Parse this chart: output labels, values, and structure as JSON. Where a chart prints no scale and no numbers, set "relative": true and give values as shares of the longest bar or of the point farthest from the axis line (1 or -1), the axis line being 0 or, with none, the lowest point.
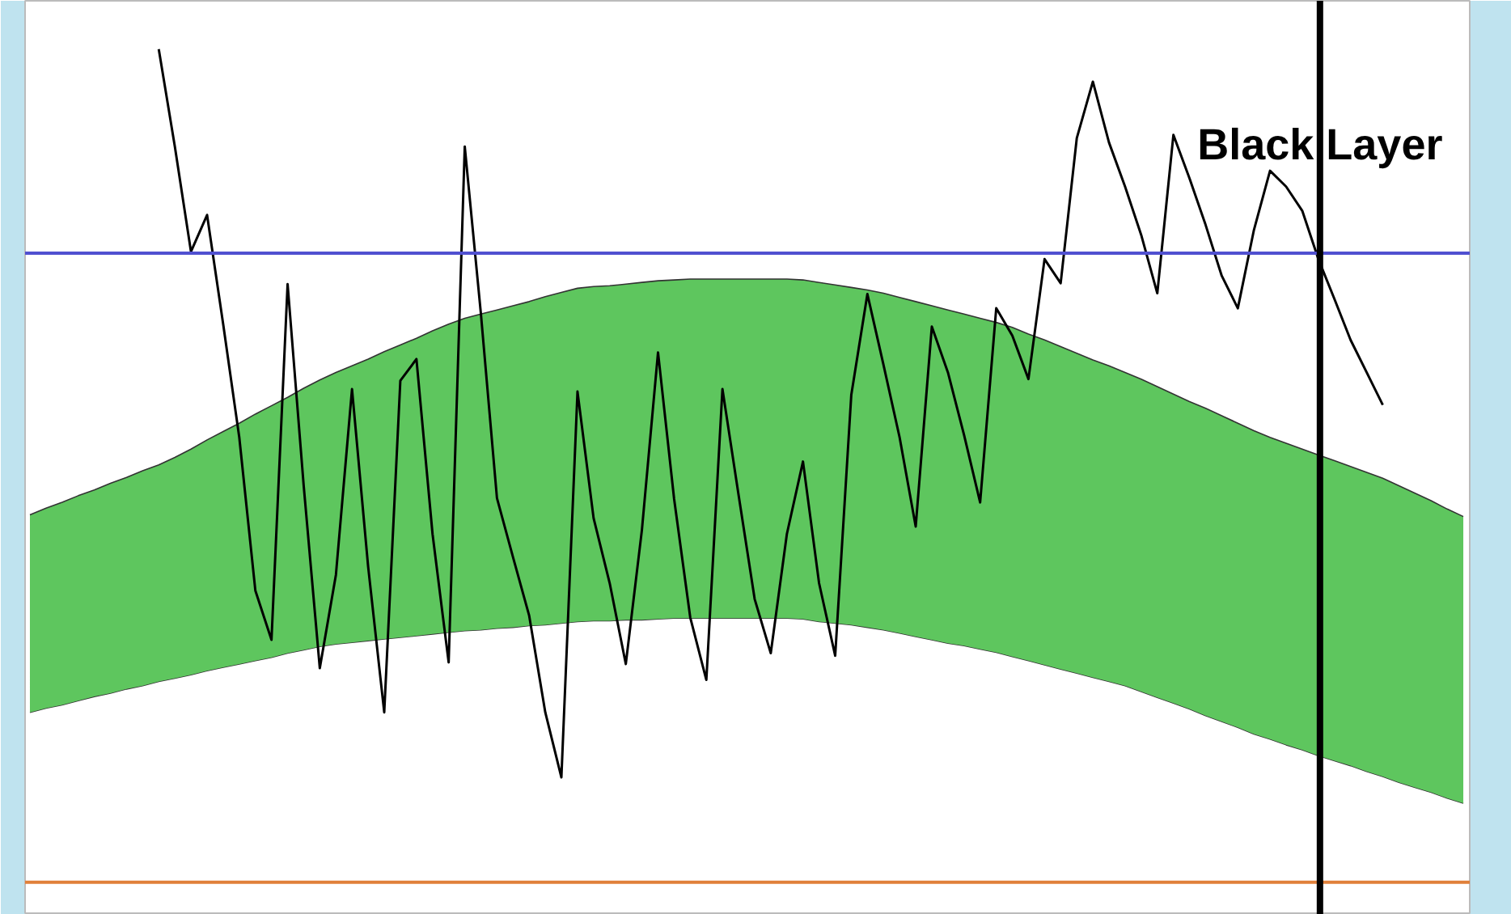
{
  "chart_data": {
    "type": "line",
    "relative": true,
    "tick_labels": false,
    "annotations": [
      "Black Layer"
    ],
    "marker": "none",
    "line_style": "solid",
    "categories": [
      null,
      null,
      null,
      null,
      null,
      null,
      null,
      null,
      null,
      null,
      null,
      null,
      null,
      null,
      null,
      null,
      null,
      null,
      null,
      null,
      null,
      null,
      null,
      null,
      null,
      null,
      null,
      null,
      null,
      null,
      null,
      null,
      null,
      null,
      null,
      null,
      null,
      null,
      null,
      null,
      null,
      null,
      null,
      null,
      null,
      null,
      null,
      null,
      null,
      null,
      null,
      null,
      null,
      null,
      null,
      null,
      null,
      null,
      null,
      null,
      null,
      null,
      null,
      null,
      null,
      null,
      null,
      null,
      null,
      null,
      null,
      null,
      null,
      null,
      null,
      null,
      null,
      null,
      null,
      null,
      null,
      null,
      null,
      null,
      null,
      null,
      null,
      null,
      null,
      null
    ],
    "ref_lines": [
      {
        "axis": "y",
        "value": 0.755,
        "label": null,
        "color": "#5050d0",
        "line_style": "solid"
      },
      {
        "axis": "y",
        "value": 0,
        "label": null,
        "color": "#e0803a",
        "line_style": "solid"
      }
    ],
    "series": [
      {
        "type": "line",
        "color": "#333333",
        "values": [
          0.204,
          0.209,
          0.213,
          0.218,
          0.223,
          0.227,
          0.232,
          0.236,
          0.241,
          0.245,
          0.249,
          0.254,
          0.258,
          0.262,
          0.266,
          0.27,
          0.275,
          0.279,
          0.283,
          0.286,
          0.288,
          0.29,
          0.292,
          0.294,
          0.296,
          0.298,
          0.3,
          0.302,
          0.303,
          0.305,
          0.306,
          0.308,
          0.309,
          0.311,
          0.313,
          0.314,
          0.314,
          0.315,
          0.315,
          0.316,
          0.317,
          0.317,
          0.317,
          0.317,
          0.317,
          0.317,
          0.317,
          0.317,
          0.316,
          0.313,
          0.311,
          0.309,
          0.306,
          0.303,
          0.299,
          0.295,
          0.291,
          0.287,
          0.284,
          0.28,
          0.276,
          0.271,
          0.266,
          0.261,
          0.256,
          0.251,
          0.246,
          0.241,
          0.236,
          0.229,
          0.222,
          0.215,
          0.208,
          0.2,
          0.193,
          0.186,
          0.178,
          0.172,
          0.165,
          0.159,
          0.152,
          0.146,
          0.14,
          0.133,
          0.127,
          0.12,
          0.114,
          0.108,
          0.101,
          0.095
        ]
      },
      {
        "type": "area",
        "color": "#5ec65e",
        "values": [
          0.441,
          0.449,
          0.456,
          0.464,
          0.471,
          0.479,
          0.486,
          0.494,
          0.501,
          0.51,
          0.52,
          0.531,
          0.541,
          0.551,
          0.562,
          0.572,
          0.582,
          0.593,
          0.603,
          0.612,
          0.62,
          0.628,
          0.637,
          0.645,
          0.653,
          0.662,
          0.67,
          0.677,
          0.682,
          0.687,
          0.692,
          0.697,
          0.703,
          0.708,
          0.713,
          0.715,
          0.716,
          0.718,
          0.72,
          0.722,
          0.723,
          0.724,
          0.724,
          0.724,
          0.724,
          0.724,
          0.724,
          0.724,
          0.723,
          0.72,
          0.717,
          0.714,
          0.711,
          0.707,
          0.702,
          0.697,
          0.692,
          0.687,
          0.682,
          0.677,
          0.672,
          0.666,
          0.658,
          0.651,
          0.643,
          0.635,
          0.627,
          0.62,
          0.612,
          0.604,
          0.595,
          0.586,
          0.577,
          0.569,
          0.56,
          0.551,
          0.542,
          0.534,
          0.527,
          0.52,
          0.513,
          0.506,
          0.499,
          0.492,
          0.485,
          0.476,
          0.467,
          0.458,
          0.448,
          0.439
        ]
      },
      {
        "color": "#000000",
        "values": [
          null,
          null,
          null,
          null,
          null,
          null,
          null,
          null,
          1.0,
          0.883,
          0.757,
          0.801,
          0.67,
          0.534,
          0.35,
          0.291,
          0.718,
          0.476,
          0.257,
          0.369,
          0.592,
          0.379,
          0.204,
          0.602,
          0.628,
          0.418,
          0.264,
          0.883,
          0.683,
          0.461,
          0.39,
          0.32,
          0.204,
          0.126,
          0.589,
          0.437,
          0.359,
          0.262,
          0.423,
          0.636,
          0.46,
          0.318,
          0.243,
          0.592,
          0.465,
          0.34,
          0.275,
          0.418,
          0.505,
          0.359,
          0.272,
          0.585,
          0.706,
          0.621,
          0.534,
          0.427,
          0.667,
          0.612,
          0.537,
          0.456,
          0.689,
          0.656,
          0.604,
          0.748,
          0.719,
          0.893,
          0.961,
          0.888,
          0.835,
          0.777,
          0.707,
          0.897,
          0.845,
          0.789,
          0.728,
          0.689,
          0.783,
          0.854,
          0.835,
          0.806,
          0.748,
          0.7,
          0.651,
          0.612,
          0.573,
          null,
          null,
          null,
          null,
          null
        ]
      }
    ]
  }
}
